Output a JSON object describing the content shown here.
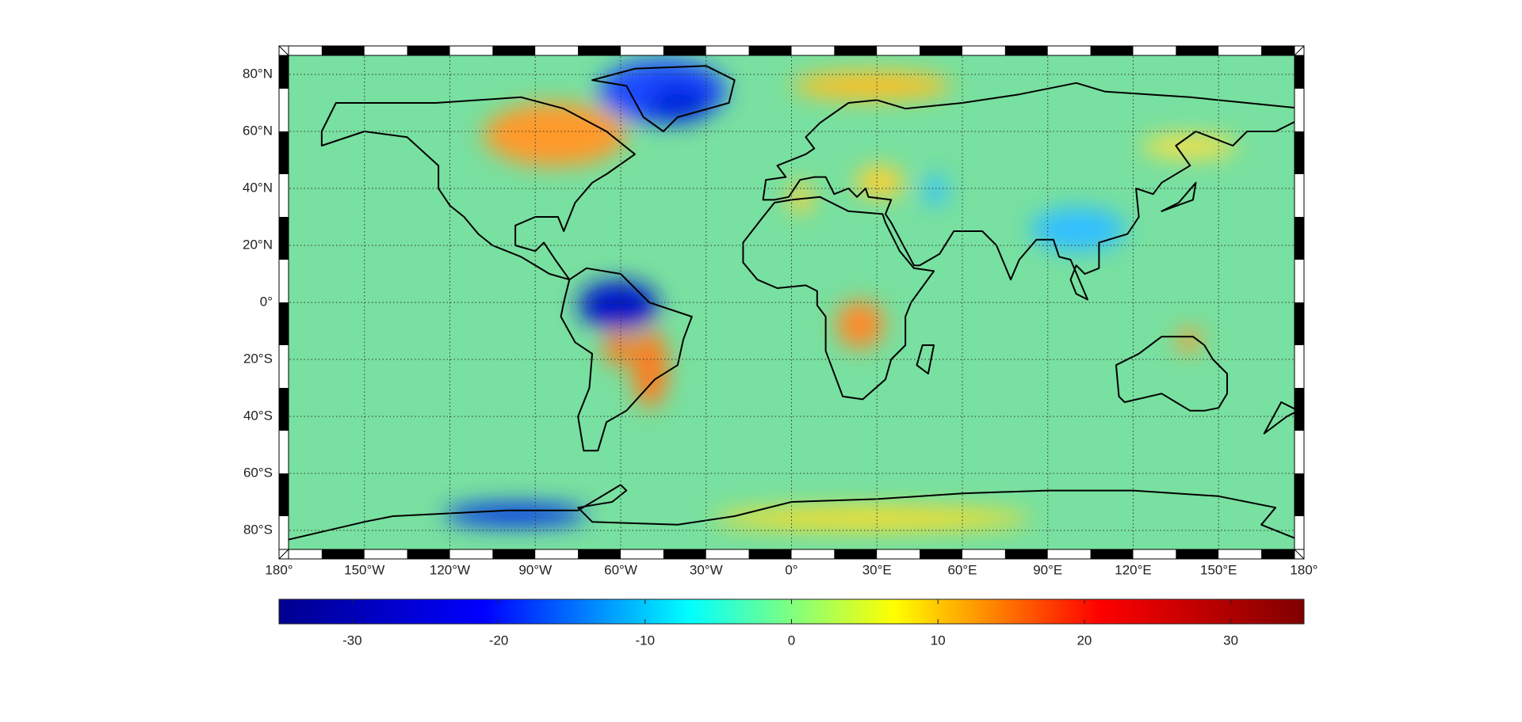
{
  "chart_data": {
    "type": "map",
    "xlim": [
      -180,
      180
    ],
    "ylim": [
      -90,
      90
    ],
    "xticks": [
      {
        "value": -180,
        "label": "180°"
      },
      {
        "value": -150,
        "label": "150°W"
      },
      {
        "value": -120,
        "label": "120°W"
      },
      {
        "value": -90,
        "label": "90°W"
      },
      {
        "value": -60,
        "label": "60°W"
      },
      {
        "value": -30,
        "label": "30°W"
      },
      {
        "value": 0,
        "label": "0°"
      },
      {
        "value": 30,
        "label": "30°E"
      },
      {
        "value": 60,
        "label": "60°E"
      },
      {
        "value": 90,
        "label": "90°E"
      },
      {
        "value": 120,
        "label": "120°E"
      },
      {
        "value": 150,
        "label": "150°E"
      },
      {
        "value": 180,
        "label": "180°"
      }
    ],
    "yticks": [
      {
        "value": 80,
        "label": "80°N"
      },
      {
        "value": 60,
        "label": "60°N"
      },
      {
        "value": 40,
        "label": "40°N"
      },
      {
        "value": 20,
        "label": "20°N"
      },
      {
        "value": 0,
        "label": "0°"
      },
      {
        "value": -20,
        "label": "20°S"
      },
      {
        "value": -40,
        "label": "40°S"
      },
      {
        "value": -60,
        "label": "60°S"
      },
      {
        "value": -80,
        "label": "80°S"
      }
    ],
    "grid": true,
    "colorbar": {
      "clim": [
        -35,
        35
      ],
      "ticks": [
        -30,
        -20,
        -10,
        0,
        10,
        20,
        30
      ],
      "colormap": [
        "#00008f",
        "#0000ff",
        "#00ffff",
        "#ffff00",
        "#ff0000",
        "#800000"
      ]
    }
  }
}
